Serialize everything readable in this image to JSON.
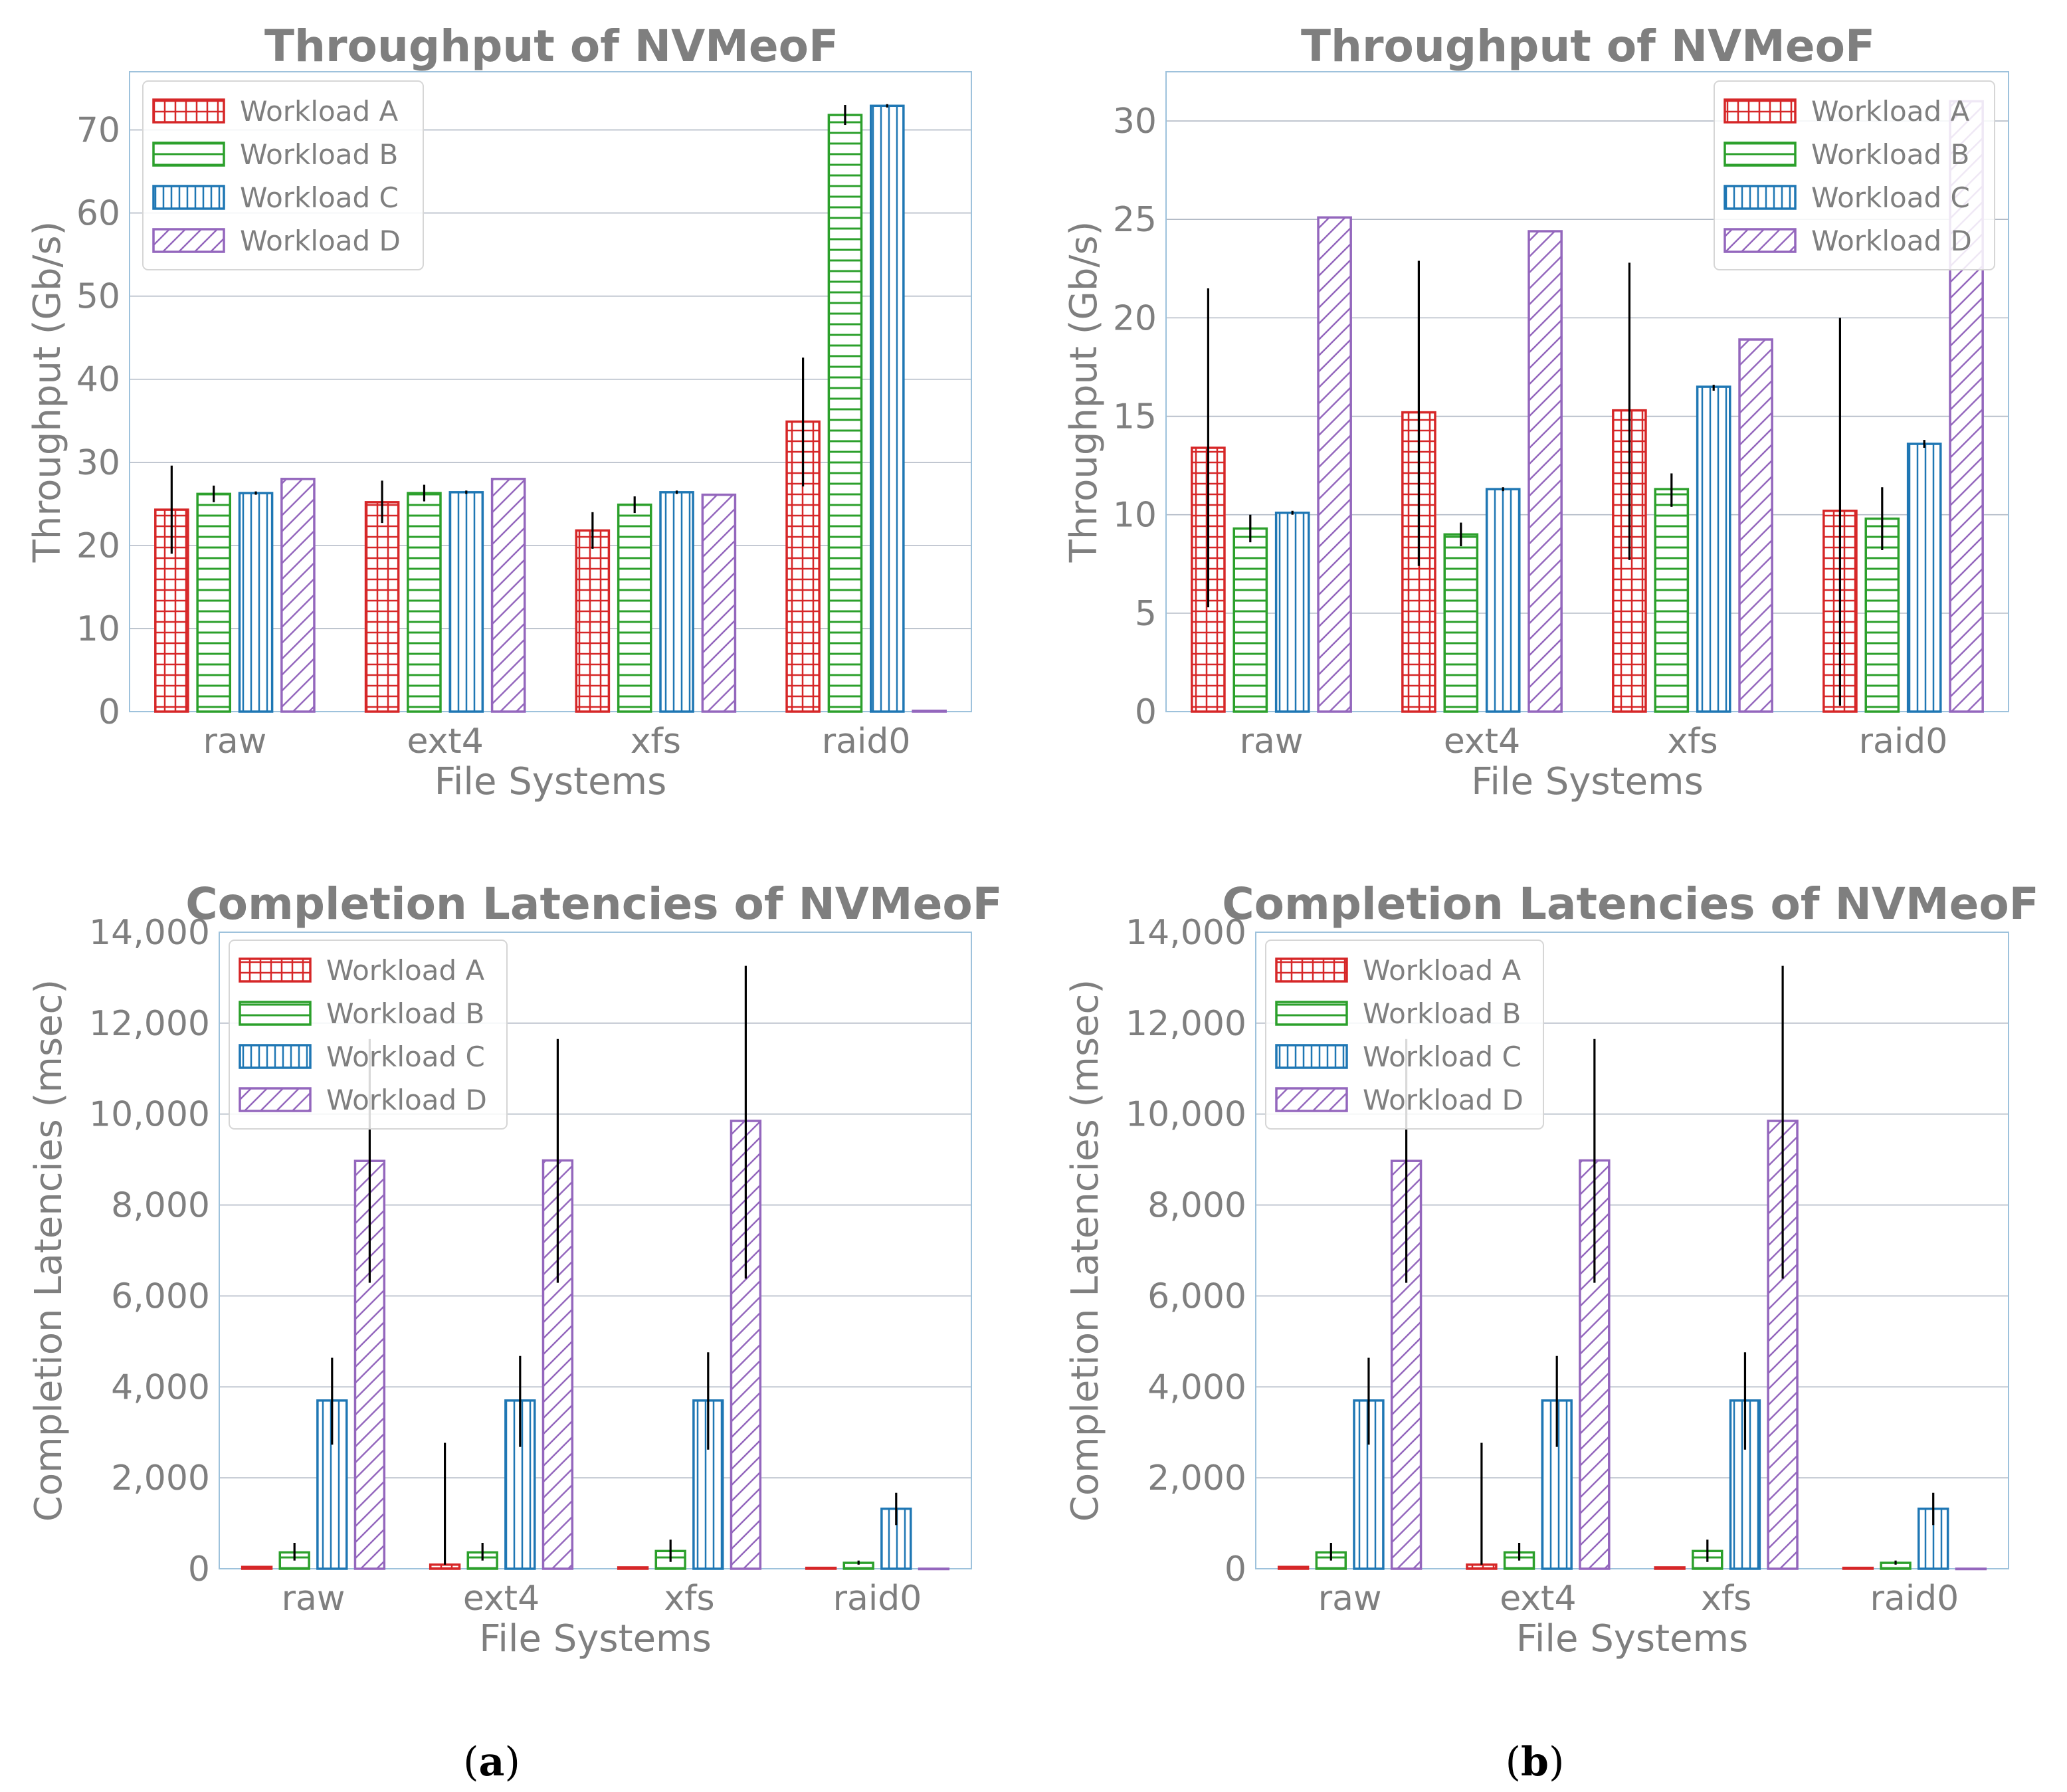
{
  "panel_labels": [
    {
      "open": "(",
      "letter": "a",
      "close": ")"
    },
    {
      "open": "(",
      "letter": "b",
      "close": ")"
    }
  ],
  "colors": {
    "Workload A": "#d62728",
    "Workload B": "#2ca02c",
    "Workload C": "#1f77b4",
    "Workload D": "#9467bd",
    "text": "#7f7f7f",
    "grid": "#b0b8c4",
    "frame": "#9ec2dc"
  },
  "chart_data": [
    {
      "type": "bar",
      "panel": "a",
      "title": "Throughput of NVMeoF",
      "xlabel": "File Systems",
      "ylabel": "Throughput (Gb/s)",
      "categories": [
        "raw",
        "ext4",
        "xfs",
        "raid0"
      ],
      "ylim": [
        0,
        77
      ],
      "yticks": [
        0,
        10,
        20,
        30,
        40,
        50,
        60,
        70
      ],
      "grid": true,
      "legend": "top-left",
      "series": [
        {
          "name": "Workload A",
          "values": [
            24.3,
            25.2,
            21.8,
            34.9
          ],
          "err_low": [
            19,
            22.7,
            19.6,
            27.1
          ],
          "err_high": [
            29.6,
            27.8,
            24,
            42.6
          ]
        },
        {
          "name": "Workload B",
          "values": [
            26.2,
            26.3,
            24.9,
            71.8
          ],
          "err_low": [
            25.2,
            25.3,
            23.9,
            70.6
          ],
          "err_high": [
            27.2,
            27.3,
            25.9,
            73
          ]
        },
        {
          "name": "Workload C",
          "values": [
            26.3,
            26.4,
            26.4,
            72.9
          ],
          "err_low": [
            26.1,
            26.2,
            26.2,
            72.7
          ],
          "err_high": [
            26.5,
            26.6,
            26.6,
            73.1
          ]
        },
        {
          "name": "Workload D",
          "values": [
            28,
            28,
            26.1,
            0.1
          ],
          "err_low": null,
          "err_high": null
        }
      ]
    },
    {
      "type": "bar",
      "panel": "b",
      "title": "Throughput of NVMeoF",
      "xlabel": "File Systems",
      "ylabel": "Throughput (Gb/s)",
      "categories": [
        "raw",
        "ext4",
        "xfs",
        "raid0"
      ],
      "ylim": [
        0,
        32.5
      ],
      "yticks": [
        0,
        5,
        10,
        15,
        20,
        25,
        30
      ],
      "grid": true,
      "legend": "top-right",
      "series": [
        {
          "name": "Workload A",
          "values": [
            13.4,
            15.2,
            15.3,
            10.2
          ],
          "err_low": [
            5.3,
            7.4,
            7.7,
            0.3
          ],
          "err_high": [
            21.5,
            22.9,
            22.8,
            20
          ]
        },
        {
          "name": "Workload B",
          "values": [
            9.3,
            9,
            11.3,
            9.8
          ],
          "err_low": [
            8.6,
            8.4,
            10.4,
            8.2
          ],
          "err_high": [
            10,
            9.6,
            12.1,
            11.4
          ]
        },
        {
          "name": "Workload C",
          "values": [
            10.1,
            11.3,
            16.5,
            13.6
          ],
          "err_low": [
            10,
            11.2,
            16.3,
            13.4
          ],
          "err_high": [
            10.2,
            11.4,
            16.6,
            13.8
          ]
        },
        {
          "name": "Workload D",
          "values": [
            25.1,
            24.4,
            18.9,
            31
          ],
          "err_low": null,
          "err_high": null
        }
      ]
    },
    {
      "type": "bar",
      "panel": "a",
      "title": "Completion Latencies of NVMeoF",
      "xlabel": "File Systems",
      "ylabel": "Completion Latencies (msec)",
      "categories": [
        "raw",
        "ext4",
        "xfs",
        "raid0"
      ],
      "ylim": [
        0,
        14000
      ],
      "yticks": [
        0,
        2000,
        4000,
        6000,
        8000,
        10000,
        12000,
        14000
      ],
      "ytick_labels": [
        "0",
        "2,000",
        "4,000",
        "6,000",
        "8,000",
        "10,000",
        "12,000",
        "14,000"
      ],
      "grid": true,
      "legend": "top-left",
      "series": [
        {
          "name": "Workload A",
          "values": [
            40,
            90,
            30,
            20
          ],
          "err_low": null,
          "err_high": [
            null,
            2770,
            null,
            null
          ]
        },
        {
          "name": "Workload B",
          "values": [
            360,
            360,
            390,
            130
          ],
          "err_low": [
            180,
            180,
            150,
            90
          ],
          "err_high": [
            570,
            570,
            640,
            180
          ]
        },
        {
          "name": "Workload C",
          "values": [
            3700,
            3700,
            3700,
            1320
          ],
          "err_low": [
            2730,
            2680,
            2620,
            960
          ],
          "err_high": [
            4640,
            4680,
            4760,
            1670
          ]
        },
        {
          "name": "Workload D",
          "values": [
            8970,
            8980,
            9850,
            0
          ],
          "err_low": [
            6290,
            6290,
            6380,
            null
          ],
          "err_high": [
            11650,
            11650,
            13260,
            null
          ]
        }
      ]
    },
    {
      "type": "bar",
      "panel": "b",
      "title": "Completion Latencies of NVMeoF",
      "xlabel": "File Systems",
      "ylabel": "Completion Latencies (msec)",
      "categories": [
        "raw",
        "ext4",
        "xfs",
        "raid0"
      ],
      "ylim": [
        0,
        14000
      ],
      "yticks": [
        0,
        2000,
        4000,
        6000,
        8000,
        10000,
        12000,
        14000
      ],
      "ytick_labels": [
        "0",
        "2,000",
        "4,000",
        "6,000",
        "8,000",
        "10,000",
        "12,000",
        "14,000"
      ],
      "grid": true,
      "legend": "top-left",
      "series": [
        {
          "name": "Workload A",
          "values": [
            40,
            90,
            30,
            20
          ],
          "err_low": null,
          "err_high": [
            null,
            2770,
            null,
            null
          ]
        },
        {
          "name": "Workload B",
          "values": [
            360,
            360,
            390,
            130
          ],
          "err_low": [
            180,
            180,
            150,
            90
          ],
          "err_high": [
            570,
            570,
            640,
            180
          ]
        },
        {
          "name": "Workload C",
          "values": [
            3700,
            3700,
            3700,
            1320
          ],
          "err_low": [
            2730,
            2680,
            2620,
            960
          ],
          "err_high": [
            4640,
            4680,
            4760,
            1670
          ]
        },
        {
          "name": "Workload D",
          "values": [
            8970,
            8980,
            9850,
            0
          ],
          "err_low": [
            6290,
            6290,
            6380,
            null
          ],
          "err_high": [
            11650,
            11650,
            13260,
            null
          ]
        }
      ]
    }
  ]
}
